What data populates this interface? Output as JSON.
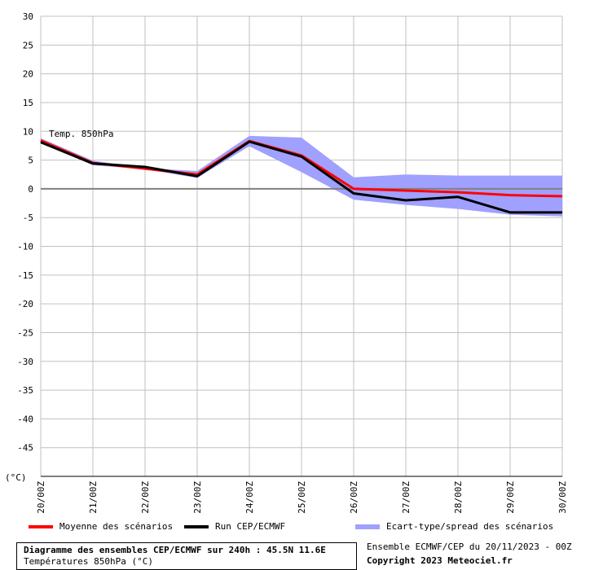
{
  "chart_data": {
    "type": "line",
    "annotation": "Temp. 850hPa",
    "yunit": "(°C)",
    "ylim": [
      -50,
      30
    ],
    "yticks": [
      30,
      25,
      20,
      15,
      10,
      5,
      0,
      -5,
      -10,
      -15,
      -20,
      -25,
      -30,
      -35,
      -40,
      -45
    ],
    "categories": [
      "20/00Z",
      "21/00Z",
      "22/00Z",
      "23/00Z",
      "24/00Z",
      "25/00Z",
      "26/00Z",
      "27/00Z",
      "28/00Z",
      "29/00Z",
      "30/00Z"
    ],
    "grid": true,
    "series": [
      {
        "name": "Moyenne des scénarios",
        "color": "#ff0000",
        "values": [
          8.4,
          4.5,
          3.5,
          2.5,
          8.3,
          5.8,
          0.0,
          -0.3,
          -0.6,
          -1.1,
          -1.3
        ]
      },
      {
        "name": "Run CEP/ECMWF",
        "color": "#000000",
        "values": [
          8.1,
          4.4,
          3.8,
          2.2,
          8.2,
          5.6,
          -0.8,
          -2.0,
          -1.4,
          -4.1,
          -4.1
        ]
      }
    ],
    "band": {
      "name": "Ecart-type/spread des scénarios",
      "color": "#a0a0ff",
      "upper": [
        8.8,
        4.9,
        3.6,
        3.1,
        9.2,
        8.9,
        2.0,
        2.5,
        2.3,
        2.3,
        2.3
      ],
      "lower": [
        8.0,
        4.1,
        3.4,
        1.9,
        7.4,
        2.9,
        -1.9,
        -2.8,
        -3.5,
        -4.5,
        -4.8
      ]
    }
  },
  "footer": {
    "title": "Diagramme des ensembles CEP/ECMWF sur 240h : 45.5N 11.6E",
    "subtitle": "Températures 850hPa (°C)",
    "run_info": "Ensemble ECMWF/CEP du 20/11/2023 - 00Z",
    "copyright": "Copyright 2023 Meteociel.fr"
  }
}
